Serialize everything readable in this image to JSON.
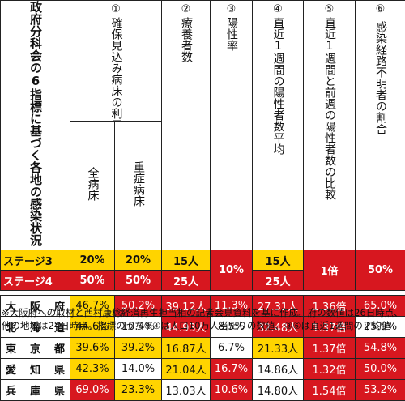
{
  "title": "政府分科会の6指標に基づく各地の感染状況",
  "columns": {
    "c1": {
      "num": "①",
      "label": "確保見込み病床の利用率"
    },
    "c1a": "全病床",
    "c1b": "重症病床",
    "c2": {
      "num": "②",
      "label": "療養者数"
    },
    "c3": {
      "num": "③",
      "label": "陽性率"
    },
    "c4": {
      "num": "④",
      "label": "直近1週間の陽性者数平均"
    },
    "c5": {
      "num": "⑤",
      "label": "直近1週間と前週の陽性者数の比較"
    },
    "c6": {
      "num": "⑥",
      "label": "感染経路不明者の割合"
    }
  },
  "stages": {
    "s3": {
      "label": "ステージ3",
      "c1a": "20%",
      "c1b": "20%",
      "c2": "15人",
      "c4": "15人"
    },
    "s4": {
      "label": "ステージ4",
      "c1a": "50%",
      "c1b": "50%",
      "c2": "25人",
      "c4": "25人"
    },
    "c3": "10%",
    "c5": "1倍",
    "c6": "50%"
  },
  "rows": [
    {
      "pref": "大阪府",
      "c1a": "46.7%",
      "c1b": "50.2%",
      "c2": "39.12人",
      "c3": "11.3%",
      "c4": "27.31人",
      "c5": "1.36倍",
      "c6": "65.0%"
    },
    {
      "pref": "北海道",
      "c1a": "44.6%",
      "c1b": "10.4%",
      "c2": "44.93人",
      "c3": "8.5%",
      "c4": "32.48人",
      "c5": "1.37倍",
      "c6": "25.9%"
    },
    {
      "pref": "東京都",
      "c1a": "39.6%",
      "c1b": "39.2%",
      "c2": "16.87人",
      "c3": "6.7%",
      "c4": "21.33人",
      "c5": "1.37倍",
      "c6": "54.8%"
    },
    {
      "pref": "愛知県",
      "c1a": "42.3%",
      "c1b": "14.0%",
      "c2": "21.04人",
      "c3": "16.7%",
      "c4": "14.86人",
      "c5": "1.32倍",
      "c6": "50.0%"
    },
    {
      "pref": "兵庫県",
      "c1a": "69.0%",
      "c1b": "23.3%",
      "c2": "13.03人",
      "c3": "10.6%",
      "c4": "14.80人",
      "c5": "1.54倍",
      "c6": "53.2%"
    }
  ],
  "colors": {
    "yellow": "#ffd400",
    "red": "#d7171f"
  },
  "note": "※大阪府への取材と西村康稔経済再生担当相の記者会見資料を基に作成。府の数値は26日時点、他の地域は24日時点。指標のうち②④は人口10万人当たりの数値、③⑥は直近1週間の平均値"
}
